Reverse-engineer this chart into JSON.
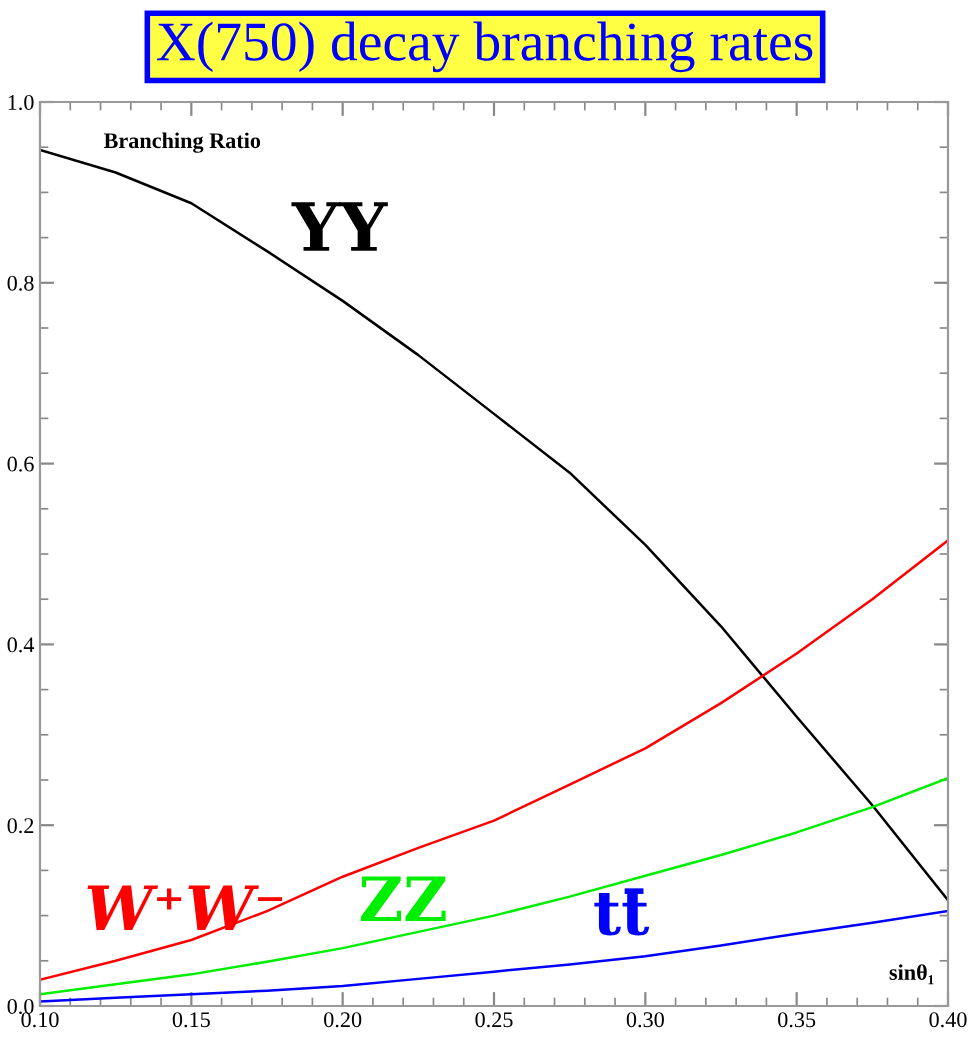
{
  "chart_data": {
    "type": "line",
    "title": "X(750) decay branching rates",
    "xlabel": "sinθ₁",
    "ylabel": "Branching Ratio",
    "x": [
      0.1,
      0.125,
      0.15,
      0.175,
      0.2,
      0.225,
      0.25,
      0.275,
      0.3,
      0.325,
      0.35,
      0.375,
      0.4
    ],
    "series": [
      {
        "name": "YY",
        "color": "#000000",
        "values": [
          0.947,
          0.922,
          0.888,
          0.835,
          0.78,
          0.72,
          0.655,
          0.59,
          0.51,
          0.42,
          0.32,
          0.222,
          0.117
        ]
      },
      {
        "name": "W⁺W⁻",
        "color": "#ff0000",
        "values": [
          0.029,
          0.05,
          0.073,
          0.105,
          0.143,
          0.175,
          0.205,
          0.245,
          0.285,
          0.335,
          0.39,
          0.45,
          0.515
        ]
      },
      {
        "name": "ZZ",
        "color": "#00ee00",
        "values": [
          0.013,
          0.024,
          0.035,
          0.049,
          0.064,
          0.082,
          0.1,
          0.121,
          0.144,
          0.167,
          0.192,
          0.22,
          0.252
        ]
      },
      {
        "name": "tt̄",
        "color": "#0000ff",
        "values": [
          0.005,
          0.009,
          0.013,
          0.017,
          0.022,
          0.03,
          0.038,
          0.046,
          0.055,
          0.067,
          0.08,
          0.092,
          0.105
        ]
      }
    ],
    "xlim": [
      0.1,
      0.4
    ],
    "ylim": [
      0.0,
      1.0
    ],
    "xticks": [
      {
        "value": 0.1,
        "label": "0.10"
      },
      {
        "value": 0.15,
        "label": "0.15"
      },
      {
        "value": 0.2,
        "label": "0.20"
      },
      {
        "value": 0.25,
        "label": "0.25"
      },
      {
        "value": 0.3,
        "label": "0.30"
      },
      {
        "value": 0.35,
        "label": "0.35"
      },
      {
        "value": 0.4,
        "label": "0.40"
      }
    ],
    "yticks": [
      {
        "value": 0.0,
        "label": "0.0"
      },
      {
        "value": 0.2,
        "label": "0.2"
      },
      {
        "value": 0.4,
        "label": "0.4"
      },
      {
        "value": 0.6,
        "label": "0.6"
      },
      {
        "value": 0.8,
        "label": "0.8"
      },
      {
        "value": 1.0,
        "label": "1.0"
      }
    ],
    "grid": false,
    "legend": false,
    "marker": "none",
    "line_style": "solid"
  }
}
